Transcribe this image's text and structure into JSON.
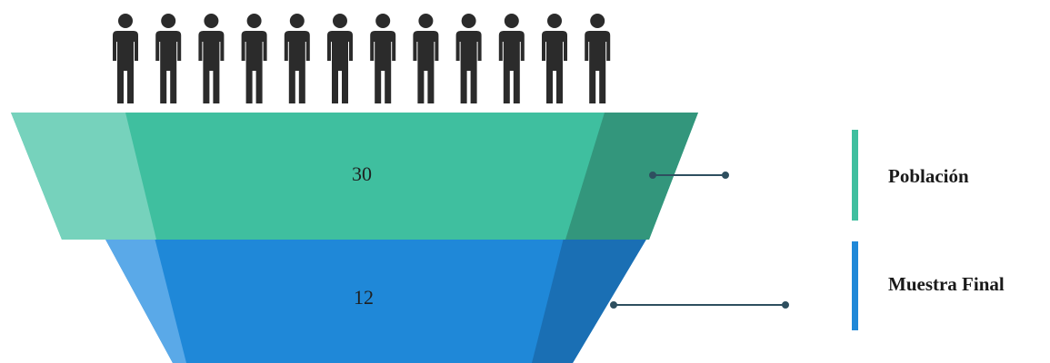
{
  "diagram": {
    "type": "funnel",
    "stages": [
      {
        "label": "Población",
        "value": "30",
        "color": "#3fbf9f",
        "color_light": "#76d2bc",
        "color_dark": "#33967c"
      },
      {
        "label": "Muestra Final",
        "value": "12",
        "color": "#1f88d8",
        "color_light": "#5aa9e8",
        "color_dark": "#1a6db0"
      }
    ],
    "legend": {
      "items": [
        {
          "label": "Población",
          "color": "#3fbf9f"
        },
        {
          "label": "Muestra Final",
          "color": "#1f88d8"
        }
      ]
    },
    "people": {
      "count": 12,
      "icon": "person-icon",
      "color": "#2b2b2b"
    },
    "connector_color": "#2e4f5f"
  }
}
